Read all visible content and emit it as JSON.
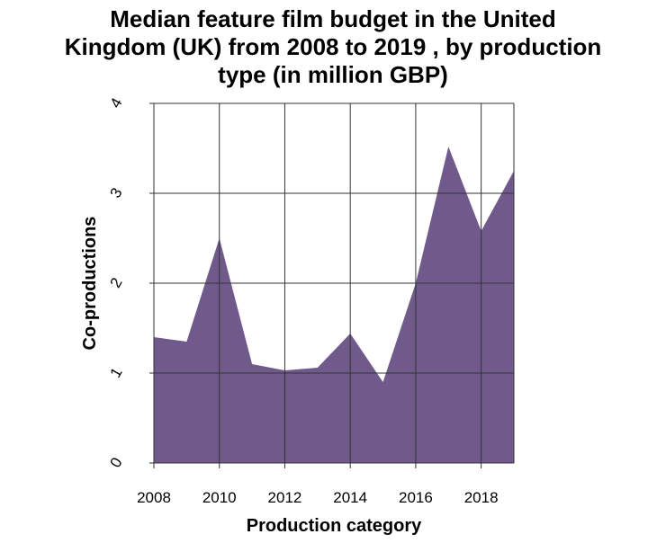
{
  "chart_data": {
    "type": "area",
    "title_lines": [
      "Median feature film budget in the United",
      "Kingdom (UK) from 2008 to 2019 , by production",
      "type (in million GBP)"
    ],
    "xlabel": "Production category",
    "ylabel": "Co-productions",
    "x": [
      2008,
      2009,
      2010,
      2011,
      2012,
      2013,
      2014,
      2015,
      2016,
      2017,
      2018,
      2019
    ],
    "values": [
      1.4,
      1.35,
      2.5,
      1.1,
      1.03,
      1.06,
      1.44,
      0.9,
      2.0,
      3.52,
      2.58,
      3.25
    ],
    "xlim": [
      2008,
      2019
    ],
    "ylim": [
      0,
      4
    ],
    "x_ticks": [
      2008,
      2010,
      2012,
      2014,
      2016,
      2018
    ],
    "x_tick_labels": [
      "2008",
      "2010",
      "2012",
      "2014",
      "2016",
      "2018"
    ],
    "y_ticks": [
      0,
      1,
      2,
      3,
      4
    ],
    "y_tick_labels": [
      "0",
      "1",
      "2",
      "3",
      "4"
    ],
    "grid": true,
    "fill_color": "#705a8c"
  }
}
